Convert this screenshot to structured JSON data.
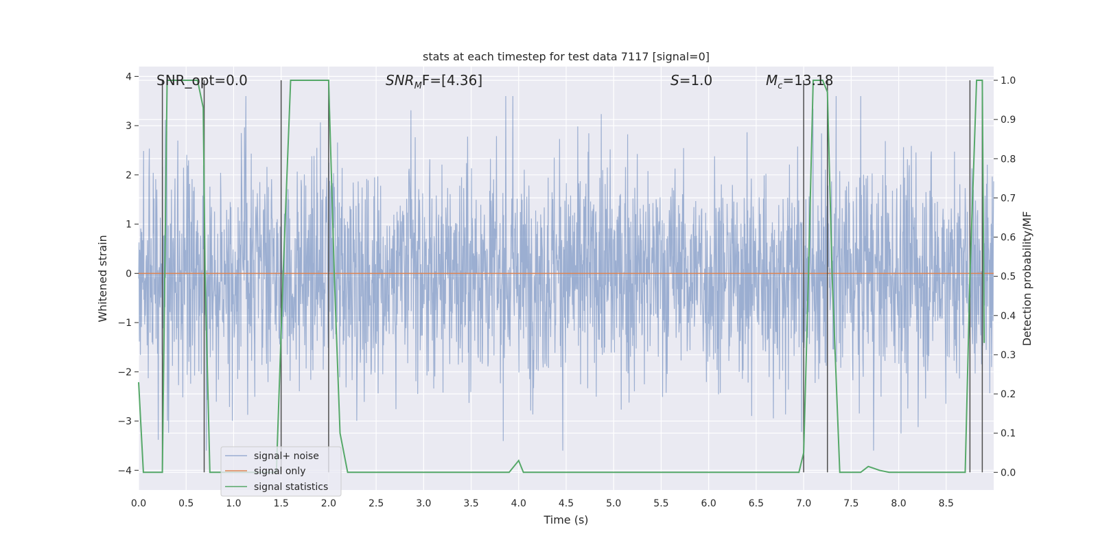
{
  "chart_data": {
    "type": "line",
    "title": "stats at each timestep for test data 7117 [signal=0]",
    "xlabel": "Time (s)",
    "ylabel_left": "Whitened strain",
    "ylabel_right": "Detection probability/MF",
    "xlim": [
      0.0,
      9.0
    ],
    "ylim_left": [
      -4.4,
      4.2
    ],
    "ylim_right": [
      -0.045,
      1.035
    ],
    "x_ticks": [
      "0.0",
      "0.5",
      "1.0",
      "1.5",
      "2.0",
      "2.5",
      "3.0",
      "3.5",
      "4.0",
      "4.5",
      "5.0",
      "5.5",
      "6.0",
      "6.5",
      "7.0",
      "7.5",
      "8.0",
      "8.5"
    ],
    "y_ticks_left": [
      "4",
      "3",
      "2",
      "1",
      "0",
      "−1",
      "−2",
      "−3",
      "−4"
    ],
    "y_ticks_right": [
      "1.0",
      "0.9",
      "0.8",
      "0.7",
      "0.6",
      "0.5",
      "0.4",
      "0.3",
      "0.2",
      "0.1",
      "0.0"
    ],
    "grid": true,
    "legend_position": "lower-left",
    "colors": {
      "background": "#eaeaf2",
      "grid": "#ffffff",
      "noise": "#4c72b0",
      "signal": "#dd8452",
      "stats": "#55a868",
      "vlines": "#4d4d4d"
    },
    "annotations": {
      "snr_opt": "SNR_opt=0.0",
      "snr_mf_main": "SNR",
      "snr_mf_sub": "M",
      "snr_mf_tail": "F=[4.36]",
      "s_main": "S",
      "s_tail": "=1.0",
      "mc_main": "M",
      "mc_sub": "c",
      "mc_tail": "=13.18"
    },
    "series": [
      {
        "name": "signal+ noise",
        "description_envelope": {
          "typical_amplitude": 1.6,
          "max_amplitude": 3.6,
          "min_amplitude": -3.6
        }
      },
      {
        "name": "signal only",
        "constant_value": 0.0
      },
      {
        "name": "signal statistics",
        "x": [
          0.0,
          0.05,
          0.25,
          0.3,
          0.62,
          0.68,
          0.7,
          0.75,
          1.45,
          1.52,
          1.6,
          2.0,
          2.06,
          2.12,
          2.2,
          3.9,
          4.0,
          4.05,
          4.1,
          6.95,
          7.0,
          7.05,
          7.1,
          7.2,
          7.25,
          7.3,
          7.38,
          7.6,
          7.68,
          7.8,
          7.9,
          8.7,
          8.75,
          8.82,
          8.88,
          8.9
        ],
        "y": [
          0.23,
          0.0,
          0.0,
          1.0,
          1.0,
          0.93,
          0.5,
          0.0,
          0.0,
          0.5,
          1.0,
          1.0,
          0.5,
          0.1,
          0.0,
          0.0,
          0.03,
          0.0,
          0.0,
          0.0,
          0.05,
          0.5,
          1.0,
          1.0,
          0.97,
          0.5,
          0.0,
          0.0,
          0.015,
          0.005,
          0.0,
          0.0,
          0.5,
          1.0,
          1.0,
          0.33
        ]
      }
    ],
    "vlines_x": [
      0.25,
      0.69,
      1.5,
      2.0,
      7.0,
      7.25,
      8.75,
      8.88
    ],
    "vlines_range": [
      0.0,
      1.0
    ]
  },
  "legend": {
    "noise_label": "signal+ noise",
    "signal_label": "signal only",
    "stats_label": "signal statistics"
  }
}
